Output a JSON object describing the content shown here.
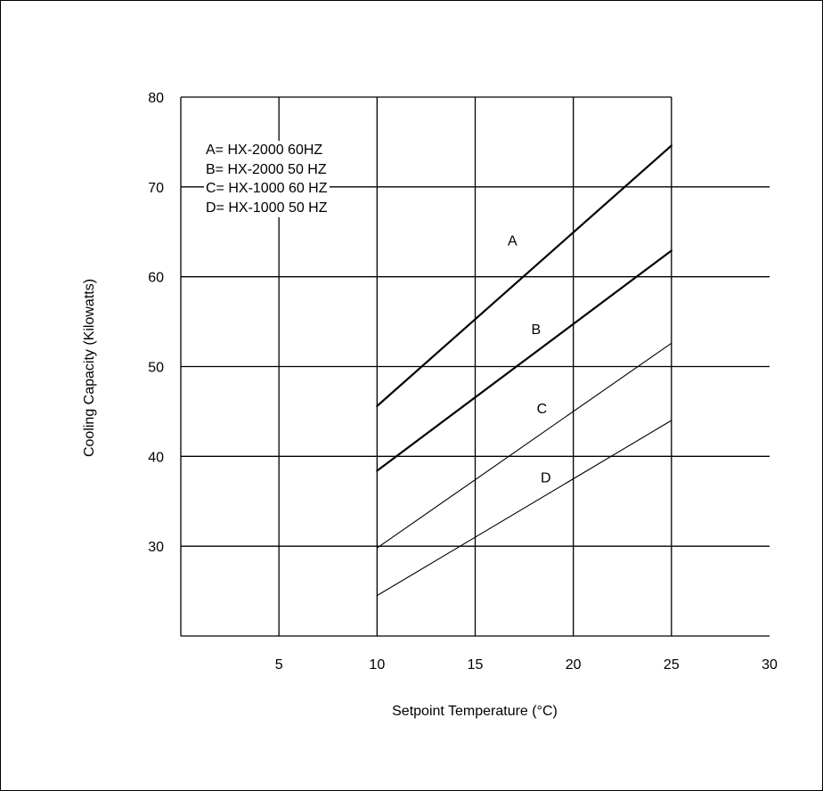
{
  "chart_data": {
    "type": "line",
    "title": "",
    "xlabel": "Setpoint Temperature (°C)",
    "ylabel": "Cooling Capacity (Kilowatts)",
    "xlim": [
      0,
      30
    ],
    "ylim": [
      20,
      80
    ],
    "x_ticks": [
      5,
      10,
      15,
      20,
      25,
      30
    ],
    "y_ticks": [
      30,
      40,
      50,
      60,
      70,
      80
    ],
    "grid": true,
    "legend_position": "top-left",
    "legend": [
      "A= HX-2000 60HZ",
      "B= HX-2000 50 HZ",
      "C= HX-1000 60 HZ",
      "D= HX-1000 50 HZ"
    ],
    "series": [
      {
        "name": "A",
        "x": [
          10,
          25
        ],
        "y": [
          45.6,
          74.6
        ],
        "stroke": "heavy"
      },
      {
        "name": "B",
        "x": [
          10,
          25
        ],
        "y": [
          38.4,
          62.9
        ],
        "stroke": "heavy"
      },
      {
        "name": "C",
        "x": [
          10,
          25
        ],
        "y": [
          29.8,
          52.6
        ],
        "stroke": "light"
      },
      {
        "name": "D",
        "x": [
          10,
          25
        ],
        "y": [
          24.5,
          44.0
        ],
        "stroke": "light"
      }
    ],
    "line_labels": [
      {
        "series": "A",
        "text": "A",
        "x": 16.9,
        "y": 63.5
      },
      {
        "series": "B",
        "text": "B",
        "x": 18.1,
        "y": 53.6
      },
      {
        "series": "C",
        "text": "C",
        "x": 18.4,
        "y": 44.8
      },
      {
        "series": "D",
        "text": "D",
        "x": 18.6,
        "y": 37.1
      }
    ]
  }
}
